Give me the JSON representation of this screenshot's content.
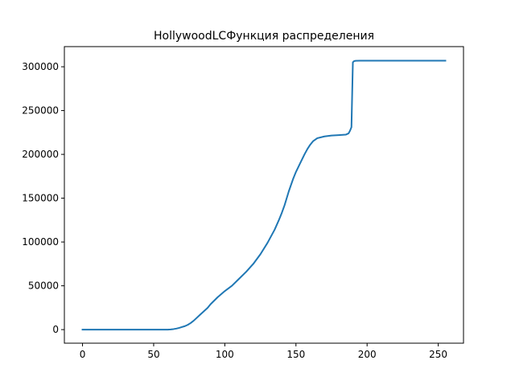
{
  "chart_data": {
    "type": "line",
    "title": "HollywoodLCФункция распределения",
    "xlabel": "",
    "ylabel": "",
    "xlim": [
      -12.75,
      267.75
    ],
    "ylim": [
      -15500,
      323000
    ],
    "xticks": [
      0,
      50,
      100,
      150,
      200,
      250
    ],
    "yticks": [
      0,
      50000,
      100000,
      150000,
      200000,
      250000,
      300000
    ],
    "xtick_labels": [
      "0",
      "50",
      "100",
      "150",
      "200",
      "250"
    ],
    "ytick_labels": [
      "0",
      "50000",
      "100000",
      "150000",
      "200000",
      "250000",
      "300000"
    ],
    "grid": false,
    "legend": "none",
    "line_color": "#1f77b4",
    "series": [
      {
        "x": [
          0,
          10,
          20,
          30,
          40,
          50,
          55,
          60,
          62,
          64,
          66,
          68,
          70,
          72,
          74,
          76,
          78,
          80,
          82,
          84,
          86,
          88,
          90,
          95,
          100,
          105,
          110,
          115,
          120,
          125,
          130,
          135,
          138,
          140,
          142,
          145,
          148,
          150,
          153,
          156,
          158,
          160,
          162,
          165,
          170,
          175,
          180,
          185,
          187,
          188,
          189,
          190,
          190.5,
          191,
          192,
          195,
          200,
          220,
          240,
          255
        ],
        "y": [
          0,
          0,
          0,
          0,
          0,
          0,
          0,
          0,
          200,
          600,
          1200,
          2000,
          3000,
          4000,
          5500,
          7500,
          10000,
          13000,
          16000,
          19000,
          22000,
          25000,
          29000,
          37000,
          44000,
          50000,
          58000,
          66000,
          75000,
          86000,
          99000,
          114000,
          125000,
          133000,
          142000,
          158000,
          172000,
          180000,
          190000,
          200000,
          206000,
          211000,
          215000,
          218500,
          220500,
          221500,
          222000,
          222500,
          224000,
          227000,
          231000,
          305000,
          306000,
          306500,
          306800,
          307000,
          307000,
          307000,
          307000,
          307000
        ]
      }
    ]
  }
}
